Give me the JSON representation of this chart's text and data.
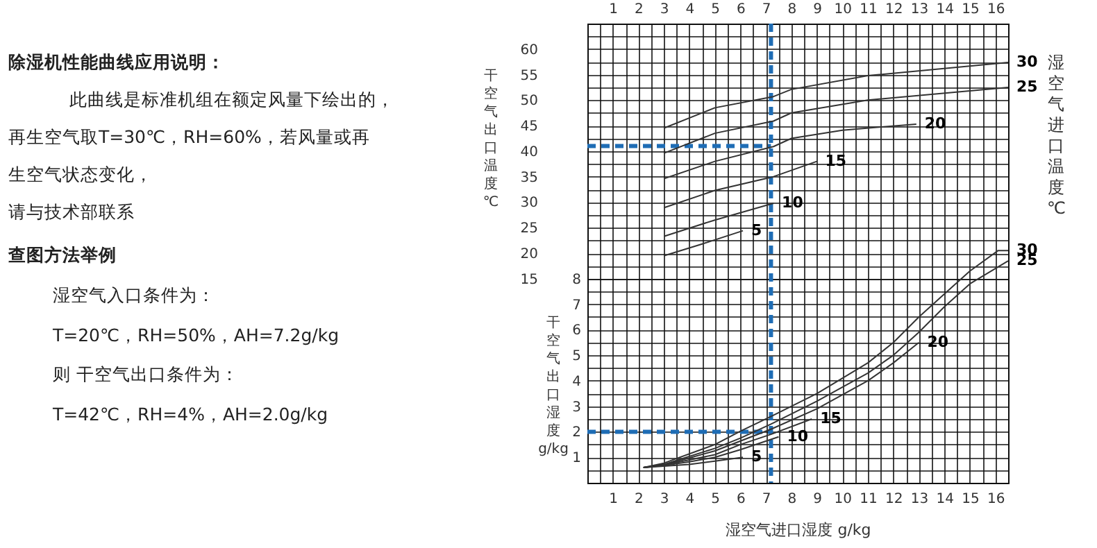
{
  "chart_data": {
    "type": "line",
    "title": "除湿机性能曲线应用说明：",
    "annotations": [
      "此曲线是标准机组在额定风量下绘出的，",
      "再生空气取T=30℃，RH=60%，若风量或再",
      "生空气状态变化，",
      "请与技术部联系",
      "查图方法举例",
      "湿空气入口条件为：",
      "T=20℃，RH=50%，AH=7.2g/kg",
      "则  干空气出口条件为：",
      "T=42℃，RH=4%，AH=2.0g/kg"
    ],
    "xlabel": "湿空气进口湿度  g/kg",
    "ylabel": "干空气出口温度℃",
    "y2label": "干空气出口湿度 g/kg",
    "legend_title": "湿空气进口温度℃",
    "xlim": [
      0,
      16.5
    ],
    "xticks": [
      1,
      2,
      3,
      4,
      5,
      6,
      7,
      8,
      9,
      10,
      11,
      12,
      13,
      14,
      15,
      16
    ],
    "x2lim": [
      0,
      16.5
    ],
    "x2ticks": [
      1,
      2,
      3,
      4,
      5,
      6,
      7,
      8,
      9,
      10,
      11,
      12,
      13,
      14,
      15,
      16
    ],
    "ylim": [
      -25,
      65
    ],
    "yticks": [
      15,
      20,
      25,
      30,
      35,
      40,
      45,
      50,
      55,
      60
    ],
    "y2lim": [
      0,
      18
    ],
    "y2ticks": [
      1,
      2,
      3,
      4,
      5,
      6,
      7,
      8
    ],
    "grid": true,
    "legend": false,
    "series": [
      {
        "name": "30",
        "color": "#333333",
        "x": [
          3,
          5,
          7.3,
          8,
          11,
          16.5
        ],
        "values": [
          44.5,
          48.5,
          50.7,
          52.1,
          54.8,
          57.4
        ]
      },
      {
        "name": "25",
        "color": "#333333",
        "x": [
          3,
          5,
          7.3,
          8,
          11,
          16.5
        ],
        "values": [
          39.6,
          43.5,
          45.9,
          47.5,
          50,
          52.5
        ]
      },
      {
        "name": "20",
        "color": "#333333",
        "x": [
          3,
          5,
          7.3,
          8,
          10,
          12.9
        ],
        "values": [
          34.6,
          38,
          40.9,
          42.5,
          44.1,
          45.3
        ]
      },
      {
        "name": "15",
        "color": "#333333",
        "x": [
          3,
          5,
          7.3,
          9
        ],
        "values": [
          28.9,
          32.3,
          35,
          38
        ]
      },
      {
        "name": "10",
        "color": "#333333",
        "x": [
          3,
          5,
          7.3
        ],
        "values": [
          23.3,
          26.5,
          29.8
        ]
      },
      {
        "name": "5",
        "color": "#333333",
        "x": [
          3,
          4.5,
          6.1
        ],
        "values": [
          19.5,
          21.8,
          24.4
        ]
      },
      {
        "name": "30",
        "color": "#333333",
        "axis": "y2",
        "x": [
          2.2,
          3,
          5,
          6,
          7.2,
          9,
          11,
          12,
          13,
          14,
          15,
          16.1,
          16.5
        ],
        "values": [
          0.6,
          0.77,
          1.5,
          2.02,
          2.6,
          3.5,
          4.7,
          5.5,
          6.5,
          7.4,
          8.3,
          9.1,
          9.1
        ]
      },
      {
        "name": "25",
        "color": "#333333",
        "axis": "y2",
        "x": [
          2.2,
          3,
          5,
          6,
          7.2,
          9,
          11,
          12,
          13,
          14,
          15,
          16.5
        ],
        "values": [
          0.6,
          0.72,
          1.35,
          1.75,
          2.3,
          3.2,
          4.3,
          5,
          5.9,
          6.9,
          7.8,
          8.7
        ]
      },
      {
        "name": "20",
        "color": "#333333",
        "axis": "y2",
        "x": [
          2.2,
          3,
          5,
          7.2,
          9,
          11,
          12,
          13
        ],
        "values": [
          0.6,
          0.7,
          1.25,
          2.1,
          2.9,
          4,
          4.7,
          5.5
        ]
      },
      {
        "name": "15",
        "color": "#333333",
        "axis": "y2",
        "x": [
          2.2,
          3,
          4,
          5,
          6,
          7.2,
          8.8
        ],
        "values": [
          0.6,
          0.7,
          0.9,
          1.1,
          1.5,
          1.9,
          2.5
        ]
      },
      {
        "name": "10",
        "color": "#333333",
        "axis": "y2",
        "x": [
          2.2,
          3,
          4,
          5,
          6,
          7.5
        ],
        "values": [
          0.6,
          0.68,
          0.82,
          1,
          1.3,
          1.8
        ]
      },
      {
        "name": "5",
        "color": "#333333",
        "axis": "y2",
        "x": [
          2.2,
          3,
          4,
          5,
          6.1
        ],
        "values": [
          0.6,
          0.65,
          0.72,
          0.85,
          1
        ]
      }
    ],
    "ref_lines": [
      {
        "axis": "x",
        "value": 7.2,
        "color": "#1f6db5",
        "line_style": "dashed"
      },
      {
        "axis": "y",
        "value": 41,
        "color": "#1f6db5",
        "line_style": "dashed"
      },
      {
        "axis": "y2",
        "value": 2,
        "color": "#1f6db5",
        "line_style": "dashed"
      }
    ]
  }
}
